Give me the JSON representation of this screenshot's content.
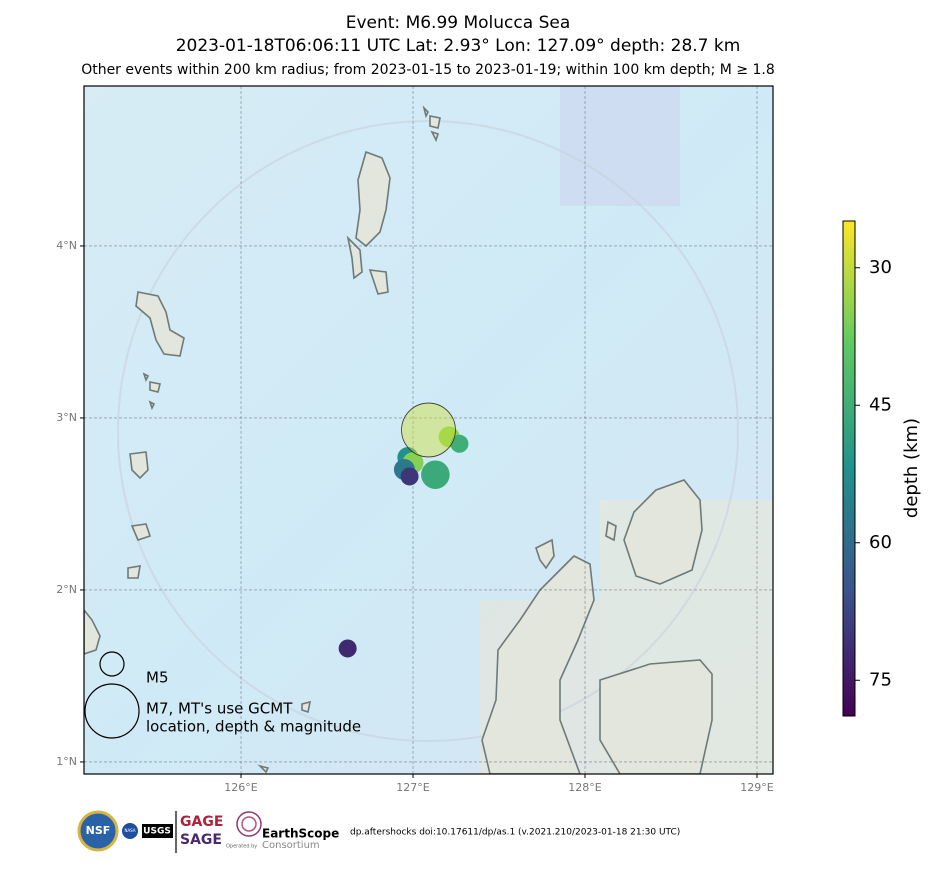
{
  "chart_data": {
    "type": "scatter",
    "title": "Event: M6.99 Molucca Sea",
    "subtitle": "2023-01-18T06:06:11 UTC Lat: 2.93° Lon: 127.09° depth: 28.7 km",
    "note": "Other events within 200 km radius; from 2023-01-15 to 2023-01-19; within 100 km depth; M ≥ 1.8",
    "main_event": {
      "lon": 127.09,
      "lat": 2.93,
      "depth": 28.7,
      "magnitude": 6.99
    },
    "events": {
      "lon": [
        127.21,
        127.27,
        126.97,
        127.0,
        126.95,
        126.98,
        127.13,
        126.62
      ],
      "lat": [
        2.89,
        2.85,
        2.77,
        2.74,
        2.7,
        2.66,
        2.67,
        1.66
      ],
      "depth": [
        35,
        45,
        52,
        35,
        57,
        70,
        46,
        72
      ],
      "magnitude": [
        4.8,
        4.6,
        4.8,
        4.8,
        4.8,
        4.6,
        5.3,
        4.6
      ]
    },
    "xlim": [
      125.087,
      129.093
    ],
    "ylim": [
      0.93,
      4.93
    ],
    "xticks": [
      {
        "value": 126,
        "label": "126°E"
      },
      {
        "value": 127,
        "label": "127°E"
      },
      {
        "value": 128,
        "label": "128°E"
      },
      {
        "value": 129,
        "label": "129°E"
      }
    ],
    "yticks": [
      {
        "value": 1,
        "label": "1°N"
      },
      {
        "value": 2,
        "label": "2°N"
      },
      {
        "value": 3,
        "label": "3°N"
      },
      {
        "value": 4,
        "label": "4°N"
      }
    ],
    "grid": true,
    "colorbar": {
      "label": "depth (km)",
      "lim": [
        24.9,
        78.9
      ],
      "ticks": [
        30,
        45,
        60,
        75
      ],
      "colors": [
        "#fde725",
        "#5ec962",
        "#21918c",
        "#3b528b",
        "#440154"
      ]
    },
    "size_legend": [
      {
        "magnitude": 5,
        "labels": [
          "M5"
        ]
      },
      {
        "magnitude": 7,
        "labels": [
          "M7, MT's use GCMT",
          "location, depth & magnitude"
        ]
      }
    ],
    "footer": {
      "nsf": "NSF",
      "nasa": "NASA",
      "usgs": "USGS",
      "gage": "GAGE",
      "sage": "SAGE",
      "earthscope": "EarthScope",
      "consortium": "Consortium",
      "operated_by": "Operated by",
      "credit": "dp.aftershocks doi:10.17611/dp/as.1 (v.2021.210/2023-01-18 21:30 UTC)"
    }
  }
}
